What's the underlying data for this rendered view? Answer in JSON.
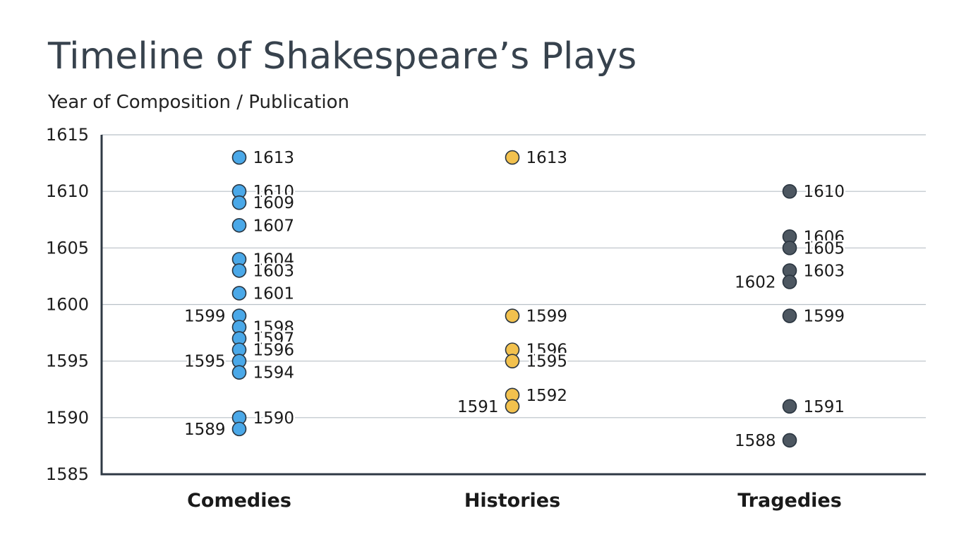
{
  "chart_data": {
    "type": "scatter",
    "title": "Timeline of Shakespeare’s Plays",
    "subtitle": "Year of Composition / Publication",
    "categories": [
      "Comedies",
      "Histories",
      "Tragedies"
    ],
    "ylim": [
      1585,
      1615
    ],
    "yticks": [
      1585,
      1590,
      1595,
      1600,
      1605,
      1610,
      1615
    ],
    "grid": true,
    "series": [
      {
        "category": "Comedies",
        "color": "#4aa8e8",
        "points": [
          {
            "year": 1613,
            "label": "1613",
            "side": "right"
          },
          {
            "year": 1610,
            "label": "1610",
            "side": "right"
          },
          {
            "year": 1609,
            "label": "1609",
            "side": "right"
          },
          {
            "year": 1607,
            "label": "1607",
            "side": "right"
          },
          {
            "year": 1604,
            "label": "1604",
            "side": "right"
          },
          {
            "year": 1603,
            "label": "1603",
            "side": "right"
          },
          {
            "year": 1601,
            "label": "1601",
            "side": "right"
          },
          {
            "year": 1599,
            "label": "1599",
            "side": "left"
          },
          {
            "year": 1598,
            "label": "1598",
            "side": "right"
          },
          {
            "year": 1597,
            "label": "1597",
            "side": "right"
          },
          {
            "year": 1596,
            "label": "1596",
            "side": "right"
          },
          {
            "year": 1595,
            "label": "1595",
            "side": "left"
          },
          {
            "year": 1594,
            "label": "1594",
            "side": "right"
          },
          {
            "year": 1590,
            "label": "1590",
            "side": "right"
          },
          {
            "year": 1589,
            "label": "1589",
            "side": "left"
          }
        ]
      },
      {
        "category": "Histories",
        "color": "#f2c14e",
        "points": [
          {
            "year": 1613,
            "label": "1613",
            "side": "right"
          },
          {
            "year": 1599,
            "label": "1599",
            "side": "right"
          },
          {
            "year": 1596,
            "label": "1596",
            "side": "right"
          },
          {
            "year": 1595,
            "label": "1595",
            "side": "right"
          },
          {
            "year": 1592,
            "label": "1592",
            "side": "right"
          },
          {
            "year": 1591,
            "label": "1591",
            "side": "left"
          }
        ]
      },
      {
        "category": "Tragedies",
        "color": "#4d5761",
        "points": [
          {
            "year": 1610,
            "label": "1610",
            "side": "right"
          },
          {
            "year": 1606,
            "label": "1606",
            "side": "right"
          },
          {
            "year": 1605,
            "label": "1605",
            "side": "right"
          },
          {
            "year": 1603,
            "label": "1603",
            "side": "right"
          },
          {
            "year": 1602,
            "label": "1602",
            "side": "left"
          },
          {
            "year": 1599,
            "label": "1599",
            "side": "right"
          },
          {
            "year": 1591,
            "label": "1591",
            "side": "right"
          },
          {
            "year": 1588,
            "label": "1588",
            "side": "left"
          }
        ]
      }
    ]
  }
}
